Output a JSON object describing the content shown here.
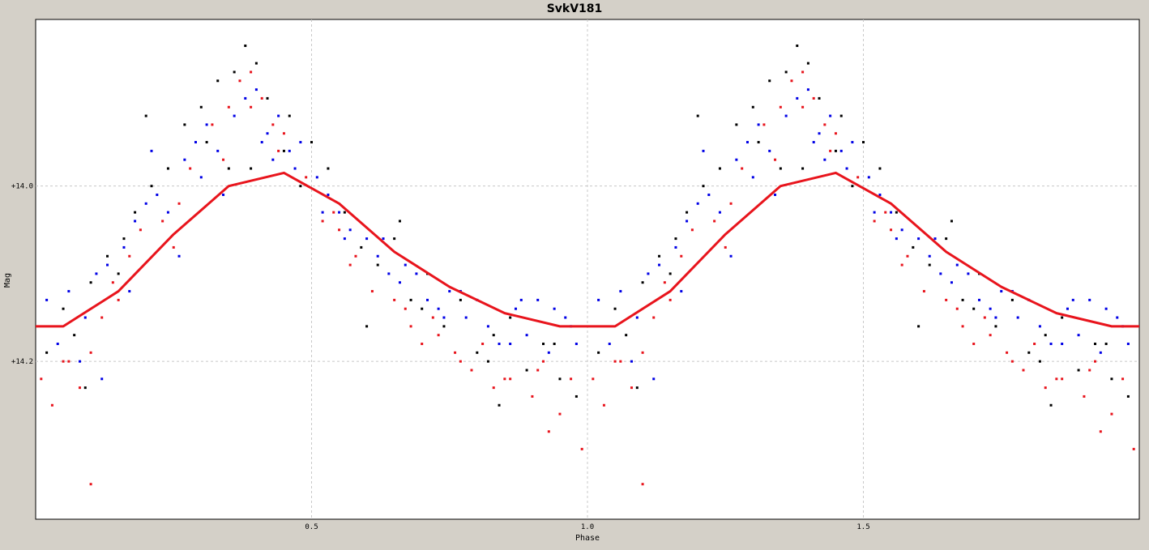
{
  "chart_data": {
    "type": "scatter",
    "title": "SvkV181",
    "xlabel": "Phase",
    "ylabel": "Mag",
    "xlim": [
      0.0,
      2.0
    ],
    "ylim": [
      14.38,
      13.81
    ],
    "y_inverted": true,
    "x_ticks": [
      {
        "value": 0.5,
        "label": "0.5"
      },
      {
        "value": 1.0,
        "label": "1.0"
      },
      {
        "value": 1.5,
        "label": "1.5"
      }
    ],
    "y_ticks": [
      {
        "value": 14.0,
        "label": "+14.0"
      },
      {
        "value": 14.2,
        "label": "+14.2"
      }
    ],
    "grid": true,
    "period_repeat": 1.0,
    "series": [
      {
        "type": "line",
        "color": "#e8141c",
        "x": [
          0.0,
          0.05,
          0.15,
          0.25,
          0.35,
          0.45,
          0.55,
          0.65,
          0.75,
          0.85,
          0.95,
          1.05,
          1.15,
          1.25,
          1.35,
          1.45,
          1.55,
          1.65,
          1.75,
          1.85,
          1.95,
          2.0
        ],
        "y": [
          14.16,
          14.16,
          14.12,
          14.055,
          14.0,
          13.985,
          14.02,
          14.075,
          14.115,
          14.145,
          14.16,
          14.16,
          14.12,
          14.055,
          14.0,
          13.985,
          14.02,
          14.075,
          14.115,
          14.145,
          14.16,
          14.16
        ]
      },
      {
        "type": "scatter",
        "color": "#0000e6",
        "x": [
          0.02,
          0.04,
          0.06,
          0.09,
          0.11,
          0.13,
          0.16,
          0.18,
          0.2,
          0.22,
          0.24,
          0.27,
          0.29,
          0.31,
          0.33,
          0.36,
          0.38,
          0.4,
          0.42,
          0.44,
          0.46,
          0.48,
          0.51,
          0.53,
          0.55,
          0.57,
          0.6,
          0.62,
          0.64,
          0.66,
          0.69,
          0.71,
          0.73,
          0.75,
          0.78,
          0.8,
          0.82,
          0.84,
          0.87,
          0.89,
          0.91,
          0.93,
          0.96,
          0.98,
          0.12,
          0.21,
          0.3,
          0.43,
          0.52,
          0.63,
          0.74,
          0.86,
          0.94,
          0.08,
          0.17,
          0.26,
          0.34,
          0.41,
          0.47,
          0.56,
          0.67,
          0.77,
          0.88,
          0.97
        ],
        "y": [
          14.13,
          14.18,
          14.12,
          14.15,
          14.1,
          14.09,
          14.07,
          14.04,
          14.02,
          14.01,
          14.03,
          13.97,
          13.95,
          13.93,
          13.96,
          13.92,
          13.9,
          13.89,
          13.94,
          13.92,
          13.96,
          13.95,
          13.99,
          14.01,
          14.03,
          14.05,
          14.06,
          14.08,
          14.1,
          14.11,
          14.1,
          14.13,
          14.14,
          14.12,
          14.15,
          14.13,
          14.16,
          14.18,
          14.14,
          14.17,
          14.13,
          14.19,
          14.15,
          14.18,
          14.22,
          13.96,
          13.99,
          13.97,
          14.03,
          14.06,
          14.15,
          14.18,
          14.14,
          14.2,
          14.12,
          14.08,
          14.01,
          13.95,
          13.98,
          14.06,
          14.09,
          14.12,
          14.13,
          14.16
        ]
      },
      {
        "type": "scatter",
        "color": "#e8141c",
        "x": [
          0.01,
          0.03,
          0.05,
          0.08,
          0.1,
          0.12,
          0.15,
          0.17,
          0.19,
          0.23,
          0.26,
          0.28,
          0.32,
          0.35,
          0.37,
          0.39,
          0.41,
          0.43,
          0.45,
          0.49,
          0.52,
          0.54,
          0.58,
          0.61,
          0.65,
          0.68,
          0.7,
          0.72,
          0.76,
          0.79,
          0.81,
          0.83,
          0.86,
          0.9,
          0.92,
          0.95,
          0.97,
          0.99,
          0.06,
          0.14,
          0.25,
          0.34,
          0.44,
          0.57,
          0.67,
          0.77,
          0.85,
          0.93,
          0.1,
          0.39,
          0.55,
          0.73,
          0.91
        ],
        "y": [
          14.22,
          14.25,
          14.2,
          14.23,
          14.19,
          14.15,
          14.13,
          14.08,
          14.05,
          14.04,
          14.02,
          13.98,
          13.93,
          13.91,
          13.88,
          13.87,
          13.9,
          13.93,
          13.94,
          13.99,
          14.04,
          14.03,
          14.08,
          14.12,
          14.13,
          14.16,
          14.18,
          14.15,
          14.19,
          14.21,
          14.18,
          14.23,
          14.22,
          14.24,
          14.2,
          14.26,
          14.22,
          14.3,
          14.2,
          14.11,
          14.07,
          13.97,
          13.96,
          14.09,
          14.14,
          14.2,
          14.22,
          14.28,
          14.34,
          13.91,
          14.05,
          14.17,
          14.21
        ]
      },
      {
        "type": "scatter",
        "color": "#000000",
        "x": [
          0.02,
          0.05,
          0.07,
          0.1,
          0.13,
          0.16,
          0.18,
          0.21,
          0.24,
          0.27,
          0.3,
          0.33,
          0.36,
          0.38,
          0.4,
          0.42,
          0.46,
          0.5,
          0.53,
          0.56,
          0.59,
          0.62,
          0.65,
          0.68,
          0.71,
          0.74,
          0.77,
          0.8,
          0.83,
          0.86,
          0.89,
          0.92,
          0.95,
          0.98,
          0.09,
          0.2,
          0.31,
          0.39,
          0.48,
          0.6,
          0.7,
          0.82,
          0.94,
          0.15,
          0.35,
          0.45,
          0.66,
          0.84
        ],
        "y": [
          14.19,
          14.14,
          14.17,
          14.11,
          14.08,
          14.06,
          14.03,
          14.0,
          13.98,
          13.93,
          13.91,
          13.88,
          13.87,
          13.84,
          13.86,
          13.9,
          13.92,
          13.95,
          13.98,
          14.03,
          14.07,
          14.09,
          14.06,
          14.13,
          14.1,
          14.16,
          14.13,
          14.19,
          14.17,
          14.15,
          14.21,
          14.18,
          14.22,
          14.24,
          14.23,
          13.92,
          13.95,
          13.98,
          14.0,
          14.16,
          14.14,
          14.2,
          14.18,
          14.1,
          13.98,
          13.96,
          14.04,
          14.25
        ]
      }
    ]
  }
}
